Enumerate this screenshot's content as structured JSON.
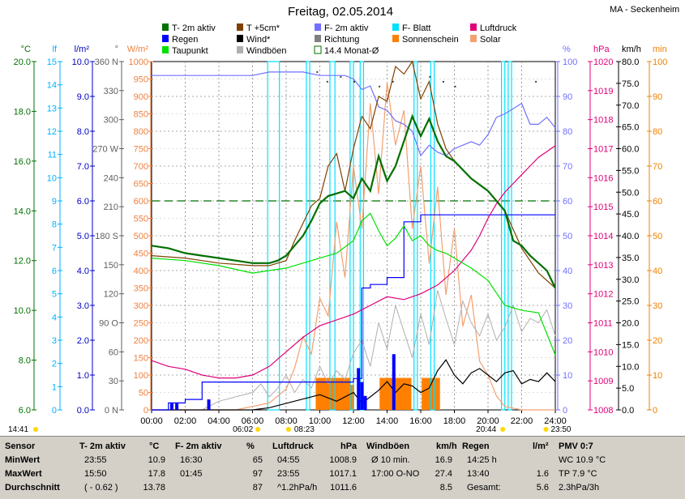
{
  "title": "Freitag, 02.05.2014",
  "station": "MA - Seckenheim",
  "legend": [
    {
      "label": "T- 2m aktiv",
      "color": "#007000",
      "style": "fill"
    },
    {
      "label": "T +5cm*",
      "color": "#804000",
      "style": "fill"
    },
    {
      "label": "F- 2m aktiv",
      "color": "#7070ff",
      "style": "fill"
    },
    {
      "label": "F- Blatt",
      "color": "#00e0ff",
      "style": "fill"
    },
    {
      "label": "Luftdruck",
      "color": "#e0007a",
      "style": "fill"
    },
    {
      "label": "Regen",
      "color": "#0000ff",
      "style": "fill"
    },
    {
      "label": "Wind*",
      "color": "#000000",
      "style": "fill"
    },
    {
      "label": "Richtung",
      "color": "#808080",
      "style": "fill"
    },
    {
      "label": "Sonnenschein",
      "color": "#ff8000",
      "style": "fill"
    },
    {
      "label": "Solar",
      "color": "#f4a070",
      "style": "fill"
    },
    {
      "label": "Taupunkt",
      "color": "#00e000",
      "style": "fill"
    },
    {
      "label": "Windböen",
      "color": "#b0b0b0",
      "style": "fill"
    },
    {
      "label": "14.4 Monat-Ø",
      "color": "#007000",
      "style": "outline"
    }
  ],
  "axes": {
    "temp": {
      "unit": "°C",
      "color": "#007000",
      "ticks": [
        "20.0",
        "18.0",
        "16.0",
        "14.0",
        "12.0",
        "10.0",
        "8.0",
        "6.0"
      ]
    },
    "lf": {
      "unit": "lf",
      "color": "#00b0ff",
      "ticks": [
        "15",
        "14",
        "13",
        "12",
        "11",
        "10",
        "9",
        "8",
        "7",
        "6",
        "5",
        "4",
        "3",
        "2",
        "1",
        "0"
      ]
    },
    "rain": {
      "unit": "l/m²",
      "color": "#0000c0",
      "ticks": [
        "10.0",
        "9.0",
        "8.0",
        "7.0",
        "6.0",
        "5.0",
        "4.0",
        "3.0",
        "2.0",
        "1.0",
        "0.0"
      ]
    },
    "dir": {
      "unit": "°",
      "color": "#606060",
      "ticks": [
        "360 N",
        "330",
        "300",
        "270 W",
        "240",
        "210",
        "180 S",
        "150",
        "120",
        "90 O",
        "60",
        "30",
        "0 N"
      ]
    },
    "solar": {
      "unit": "W/m²",
      "color": "#f08040",
      "ticks": [
        "1000",
        "950",
        "900",
        "850",
        "800",
        "750",
        "700",
        "650",
        "600",
        "550",
        "500",
        "450",
        "400",
        "350",
        "300",
        "250",
        "200",
        "150",
        "100",
        "50",
        "0"
      ]
    },
    "hum": {
      "unit": "%",
      "color": "#7070ff",
      "ticks": [
        "100",
        "90",
        "80",
        "70",
        "60",
        "50",
        "40",
        "30",
        "20",
        "10",
        "0"
      ]
    },
    "press": {
      "unit": "hPa",
      "color": "#e0007a",
      "ticks": [
        "1020",
        "1019",
        "1018",
        "1017",
        "1016",
        "1015",
        "1014",
        "1013",
        "1012",
        "1011",
        "1010",
        "1009",
        "1008"
      ]
    },
    "wind": {
      "unit": "km/h",
      "color": "#000000",
      "ticks": [
        "80.0",
        "75.0",
        "70.0",
        "65.0",
        "60.0",
        "55.0",
        "50.0",
        "45.0",
        "40.0",
        "35.0",
        "30.0",
        "25.0",
        "20.0",
        "15.0",
        "10.0",
        "5.0",
        "0.0"
      ]
    },
    "min": {
      "unit": "min",
      "color": "#f08000",
      "ticks": [
        "100",
        "90",
        "80",
        "70",
        "60",
        "50",
        "40",
        "30",
        "20",
        "10",
        "0"
      ]
    }
  },
  "xticks": [
    "00:00",
    "02:00",
    "04:00",
    "06:00",
    "08:00",
    "10:00",
    "12:00",
    "14:00",
    "16:00",
    "18:00",
    "20:00",
    "22:00",
    "24:00"
  ],
  "time_marks": {
    "left": "14:41",
    "sunrise": "06:02",
    "sunrise_b": "08:23",
    "sunset": "20:44",
    "right": "23:50"
  },
  "chart_data": {
    "type": "line",
    "x_unit": "hour",
    "xlim": [
      0,
      24
    ],
    "series": [
      {
        "name": "T- 2m aktiv",
        "unit": "°C",
        "x": [
          0,
          1,
          2,
          3,
          4,
          5,
          6,
          7,
          7.5,
          8,
          8.5,
          9,
          9.5,
          10,
          10.5,
          11,
          11.5,
          12,
          12.5,
          13,
          13.5,
          14,
          14.5,
          15,
          15.5,
          16,
          16.5,
          17,
          17.5,
          18,
          19,
          20,
          21,
          21.5,
          22,
          22.5,
          23,
          23.5,
          24
        ],
        "values": [
          12.6,
          12.5,
          12.3,
          12.2,
          12.1,
          12.0,
          11.9,
          11.9,
          12.0,
          12.2,
          12.6,
          13.0,
          13.6,
          14.3,
          14.6,
          14.7,
          14.8,
          14.5,
          15.3,
          14.8,
          16.2,
          15.2,
          15.8,
          16.8,
          17.8,
          17.0,
          17.7,
          16.8,
          16.2,
          16.0,
          15.3,
          14.8,
          14.0,
          12.8,
          12.6,
          12.2,
          11.9,
          11.6,
          10.9
        ]
      },
      {
        "name": "T +5cm*",
        "unit": "°C",
        "x": [
          0,
          2,
          4,
          6,
          7,
          8,
          8.5,
          9,
          9.5,
          10,
          10.5,
          11,
          11.5,
          12,
          12.5,
          13,
          13.5,
          14,
          14.5,
          15,
          15.5,
          16,
          16.5,
          17,
          17.5,
          18,
          19,
          20,
          21,
          22,
          23,
          24
        ],
        "values": [
          12.2,
          12.1,
          11.9,
          11.8,
          11.8,
          12.0,
          12.8,
          13.5,
          14.2,
          14.5,
          15.8,
          16.3,
          14.8,
          16.5,
          17.8,
          17.3,
          18.6,
          18.4,
          19.8,
          19.5,
          20.0,
          18.5,
          19.2,
          17.5,
          16.5,
          16.0,
          15.3,
          14.8,
          14.0,
          12.5,
          11.5,
          10.9
        ]
      },
      {
        "name": "Taupunkt",
        "unit": "°C",
        "x": [
          0,
          2,
          4,
          6,
          8,
          9,
          10,
          11,
          12,
          12.5,
          13,
          13.5,
          14,
          14.5,
          15,
          15.5,
          16,
          16.5,
          17,
          17.5,
          18,
          19,
          20,
          20.5,
          21,
          22,
          23,
          24
        ],
        "values": [
          12.1,
          12.0,
          11.8,
          11.5,
          11.7,
          11.9,
          12.1,
          12.3,
          12.8,
          13.6,
          13.9,
          13.2,
          12.6,
          12.9,
          13.4,
          12.8,
          13.0,
          12.6,
          12.4,
          12.3,
          12.1,
          11.7,
          11.2,
          10.7,
          10.2,
          10.0,
          9.9,
          8.2
        ]
      },
      {
        "name": "F- 2m aktiv",
        "unit": "%",
        "x": [
          0,
          1,
          2,
          3,
          4,
          5,
          6,
          7,
          8,
          9,
          10,
          11,
          11.5,
          12,
          12.5,
          13,
          13.5,
          14,
          14.5,
          15,
          15.5,
          16,
          16.5,
          17,
          17.5,
          18,
          19,
          19.5,
          20,
          20.5,
          21,
          22,
          22.5,
          23,
          23.5,
          24
        ],
        "values": [
          96,
          96,
          96,
          96,
          96,
          96,
          96,
          97,
          97,
          97,
          96,
          96,
          96,
          95,
          92,
          93,
          87,
          86,
          83,
          82,
          80,
          73,
          76,
          74,
          73,
          75,
          77,
          76,
          79,
          84,
          85,
          88,
          82,
          82,
          84,
          81
        ]
      },
      {
        "name": "Luftdruck",
        "unit": "hPa",
        "x": [
          0,
          1,
          2,
          3,
          4,
          5,
          6,
          7,
          8,
          9,
          10,
          11,
          12,
          13,
          14,
          15,
          16,
          17,
          18,
          19,
          19.5,
          20,
          20.5,
          21,
          21.5,
          22,
          22.5,
          23,
          23.5,
          24
        ],
        "values": [
          1009.7,
          1009.5,
          1009.4,
          1009.2,
          1009.1,
          1009.1,
          1009.2,
          1009.5,
          1010.0,
          1010.5,
          1010.9,
          1011.1,
          1011.3,
          1011.6,
          1011.9,
          1011.8,
          1012.0,
          1012.3,
          1012.8,
          1013.5,
          1014.0,
          1014.6,
          1015.1,
          1015.5,
          1015.8,
          1016.1,
          1016.4,
          1016.7,
          1016.9,
          1017.1
        ]
      },
      {
        "name": "Wind*",
        "unit": "km/h",
        "x": [
          0,
          6,
          7,
          8,
          9,
          10,
          11,
          12,
          12.5,
          13,
          13.5,
          14,
          14.5,
          15,
          15.5,
          16,
          16.5,
          17,
          17.5,
          18,
          18.5,
          19,
          19.5,
          20,
          20.5,
          21,
          21.5,
          22,
          22.5,
          23,
          23.5,
          24
        ],
        "values": [
          0,
          0,
          0.5,
          1.5,
          2.5,
          3.5,
          2.0,
          4.0,
          1.5,
          3.0,
          4.5,
          6.5,
          4.0,
          6.0,
          5.5,
          4.0,
          5.0,
          9.0,
          11.5,
          8.0,
          6.0,
          8.5,
          9.5,
          8.0,
          6.5,
          8.5,
          9.0,
          6.0,
          7.0,
          6.5,
          8.5,
          6.5
        ]
      },
      {
        "name": "Windböen",
        "unit": "km/h",
        "x": [
          0,
          3,
          4,
          5,
          6,
          6.5,
          7,
          7.5,
          8,
          8.5,
          9,
          9.5,
          10,
          10.5,
          11,
          11.5,
          12,
          12.5,
          13,
          13.5,
          14,
          14.5,
          15,
          15.5,
          16,
          16.5,
          17,
          17.5,
          18,
          18.5,
          19,
          19.5,
          20,
          20.5,
          21,
          21.5,
          22,
          22.5,
          23,
          23.5,
          24
        ],
        "values": [
          0,
          0,
          2,
          3,
          4,
          6,
          3,
          5,
          8,
          4,
          7,
          5,
          10,
          6,
          9,
          7,
          13,
          16,
          10,
          20,
          14,
          24,
          18,
          12,
          22,
          15,
          27.4,
          21,
          15,
          25,
          20,
          17,
          22,
          16,
          19,
          24,
          18,
          21,
          20,
          23,
          17
        ]
      },
      {
        "name": "Solar",
        "unit": "W/m²",
        "x": [
          0,
          5,
          6,
          7,
          8,
          8.5,
          9,
          9.5,
          10,
          10.5,
          11,
          11.5,
          12,
          12.5,
          13,
          13.5,
          14,
          14.5,
          15,
          15.5,
          16,
          16.5,
          17,
          17.5,
          18,
          18.5,
          19,
          19.5,
          20,
          20.5,
          21,
          22,
          24
        ],
        "values": [
          0,
          0,
          10,
          20,
          60,
          120,
          210,
          160,
          320,
          270,
          540,
          380,
          700,
          520,
          880,
          620,
          940,
          760,
          860,
          520,
          700,
          420,
          640,
          330,
          520,
          240,
          330,
          140,
          100,
          40,
          10,
          0,
          0
        ]
      },
      {
        "name": "Regen",
        "unit": "l/m²",
        "x": [
          0,
          1,
          2,
          3,
          4,
          6,
          8,
          9,
          10,
          11,
          12,
          12.5,
          13,
          14,
          15,
          16,
          18,
          20,
          22,
          24
        ],
        "values": [
          0,
          0.2,
          0.3,
          0.8,
          0.8,
          0.8,
          0.8,
          0.8,
          0.8,
          0.8,
          0.9,
          3.5,
          3.6,
          3.8,
          5.4,
          5.6,
          5.6,
          5.6,
          5.6,
          5.6
        ]
      },
      {
        "name": "14.4 Monat-Ø",
        "unit": "°C",
        "x": [
          0,
          24
        ],
        "values": [
          14.4,
          14.4
        ]
      }
    ],
    "sunshine": {
      "name": "Sonnenschein",
      "unit": "min",
      "x": [
        9.9,
        10.1,
        10.3,
        10.5,
        10.7,
        10.9,
        11.1,
        11.3,
        11.5,
        11.7,
        11.9,
        13.7,
        13.9,
        14.1,
        14.3,
        14.5,
        14.7,
        14.9,
        15.1,
        15.3,
        16.2,
        16.4,
        16.6,
        16.8,
        17.0
      ],
      "values": [
        5,
        5,
        5,
        5,
        5,
        5,
        5,
        5,
        5,
        5,
        3,
        5,
        5,
        5,
        5,
        5,
        5,
        5,
        5,
        5,
        5,
        5,
        5,
        5,
        5
      ]
    }
  },
  "stats": [
    {
      "title": "Sensor",
      "unit": "",
      "rows": [
        "MinWert",
        "MaxWert",
        "Durchschnitt"
      ]
    },
    {
      "title": "T- 2m aktiv",
      "unit": "°C",
      "rows": [
        [
          "23:55",
          "10.9"
        ],
        [
          "15:50",
          "17.8"
        ],
        [
          "( - 0.62 )",
          "13.78"
        ]
      ]
    },
    {
      "title": "F- 2m aktiv",
      "unit": "%",
      "rows": [
        [
          "16:30",
          "65"
        ],
        [
          "01:45",
          "97"
        ],
        [
          "",
          "87"
        ]
      ]
    },
    {
      "title": "Luftdruck",
      "unit": "hPa",
      "rows": [
        [
          "04:55",
          "1008.9"
        ],
        [
          "23:55",
          "1017.1"
        ],
        [
          "^1.2hPa/h",
          "1011.6"
        ]
      ]
    },
    {
      "title": "Windböen",
      "unit": "km/h",
      "rows": [
        [
          "Ø 10 min.",
          "16.9"
        ],
        [
          "17:00  O-NO",
          "27.4"
        ],
        [
          "",
          "8.5"
        ]
      ]
    },
    {
      "title": "Regen",
      "unit": "l/m²",
      "rows": [
        [
          "14:25 h",
          ""
        ],
        [
          "13:40",
          "1.6"
        ],
        [
          "Gesamt:",
          "5.6"
        ]
      ]
    },
    {
      "title": "PMV 0:7",
      "unit": "",
      "rows": [
        "WC 10.9 °C",
        "TP 7.9 °C",
        "2.3hPa/3h"
      ]
    }
  ]
}
